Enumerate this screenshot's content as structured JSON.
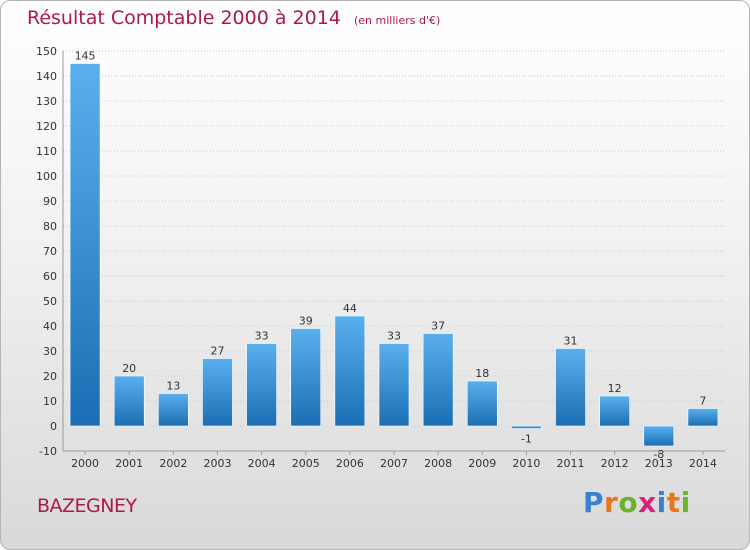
{
  "title": "Résultat Comptable 2000 à 2014",
  "subtitle": "(en milliers d'€)",
  "commune": "BAZEGNEY",
  "brand": {
    "letters": [
      "P",
      "r",
      "o",
      "x",
      "i",
      "t",
      "i"
    ],
    "colors": [
      "#3a7fd0",
      "#e8781e",
      "#6ab42d",
      "#d6247a",
      "#3a7fd0",
      "#e8781e",
      "#6ab42d"
    ]
  },
  "colors": {
    "title": "#b0174a",
    "bar_light": "#5ab0ee",
    "bar_dark": "#1a6fb4",
    "grid": "#c8c8c8",
    "axis_text": "#333333"
  },
  "chart_data": {
    "type": "bar",
    "categories": [
      "2000",
      "2001",
      "2002",
      "2003",
      "2004",
      "2005",
      "2006",
      "2007",
      "2008",
      "2009",
      "2010",
      "2011",
      "2012",
      "2013",
      "2014"
    ],
    "values": [
      145,
      20,
      13,
      27,
      33,
      39,
      44,
      33,
      37,
      18,
      -1,
      31,
      12,
      -8,
      7
    ],
    "labels": [
      "145",
      "20",
      "13",
      "27",
      "33",
      "39",
      "44",
      "33",
      "37",
      "18",
      "-1",
      "31",
      "12",
      "-8",
      "7"
    ],
    "yticks": [
      -10,
      0,
      10,
      20,
      30,
      40,
      50,
      60,
      70,
      80,
      90,
      100,
      110,
      120,
      130,
      140,
      150
    ],
    "ylim": [
      -10,
      150
    ],
    "grid": true,
    "legend": false
  }
}
